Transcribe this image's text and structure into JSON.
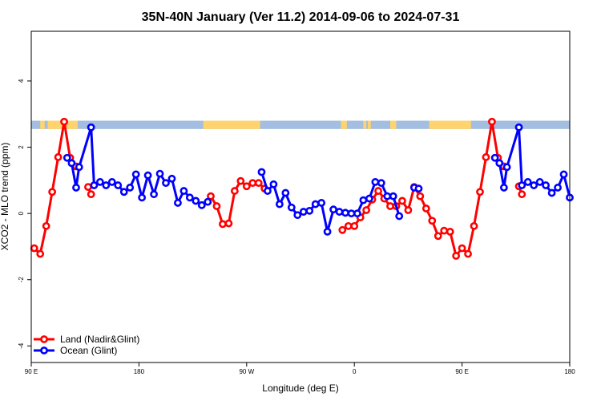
{
  "chart_data": {
    "type": "line",
    "title": "35N-40N January (Ver 11.2)   2014-09-06 to 2024-07-31",
    "xlabel": "Longitude (deg E)",
    "ylabel": "XCO2 - MLO trend (ppm)",
    "xlim": [
      90,
      270
    ],
    "ylim": [
      -4.5,
      5.5
    ],
    "x_ticks": [
      {
        "value": 90,
        "label": "90 E"
      },
      {
        "value": 126,
        "label": "180"
      },
      {
        "value": 162,
        "label": "90 W"
      },
      {
        "value": 198,
        "label": "0"
      },
      {
        "value": 234,
        "label": "90 E"
      },
      {
        "value": 270,
        "label": "180"
      }
    ],
    "y_ticks": [
      -4,
      -2,
      0,
      2,
      4
    ],
    "surface_band": {
      "y_range": [
        2.55,
        2.8
      ],
      "ocean_color": "#A3BEE0",
      "land_color": "#FFD36E",
      "land_segments": [
        [
          93,
          94.5
        ],
        [
          95.5,
          105.5
        ],
        [
          147.5,
          166.5
        ],
        [
          193.5,
          195.5
        ],
        [
          201,
          202
        ],
        [
          202.5,
          203.5
        ],
        [
          210,
          212
        ],
        [
          223,
          237
        ]
      ]
    },
    "series": [
      {
        "name": "Land (Nadir&Glint)",
        "color": "#FF0000",
        "segments": [
          [
            [
              91,
              -1.05
            ],
            [
              93,
              -1.22
            ],
            [
              95,
              -0.38
            ],
            [
              97,
              0.65
            ],
            [
              99,
              1.7
            ],
            [
              101,
              2.77
            ],
            [
              103,
              1.68
            ],
            [
              105,
              1.42
            ]
          ],
          [
            [
              109,
              0.8
            ],
            [
              110,
              0.58
            ]
          ],
          [
            [
              150,
              0.52
            ],
            [
              152,
              0.22
            ],
            [
              154,
              -0.32
            ],
            [
              156,
              -0.3
            ],
            [
              158,
              0.68
            ],
            [
              160,
              0.98
            ],
            [
              162,
              0.82
            ],
            [
              164,
              0.92
            ],
            [
              166,
              0.92
            ],
            [
              168,
              0.75
            ]
          ],
          [
            [
              194,
              -0.5
            ],
            [
              196,
              -0.38
            ],
            [
              198,
              -0.38
            ],
            [
              200,
              -0.12
            ],
            [
              202,
              0.1
            ],
            [
              204,
              0.42
            ],
            [
              206,
              0.68
            ],
            [
              208,
              0.45
            ],
            [
              210,
              0.22
            ],
            [
              212,
              0.22
            ],
            [
              214,
              0.38
            ],
            [
              216,
              0.1
            ],
            [
              218,
              0.8
            ],
            [
              220,
              0.52
            ],
            [
              222,
              0.15
            ],
            [
              224,
              -0.22
            ],
            [
              226,
              -0.68
            ],
            [
              228,
              -0.52
            ],
            [
              230,
              -0.55
            ],
            [
              232,
              -1.28
            ],
            [
              234,
              -1.05
            ],
            [
              236,
              -1.22
            ],
            [
              238,
              -0.38
            ],
            [
              240,
              0.65
            ],
            [
              242,
              1.7
            ],
            [
              244,
              2.77
            ],
            [
              246,
              1.68
            ],
            [
              248,
              1.42
            ]
          ],
          [
            [
              253,
              0.82
            ],
            [
              254,
              0.58
            ]
          ]
        ]
      },
      {
        "name": "Ocean (Glint)",
        "color": "#0000FF",
        "segments": [
          [
            [
              102,
              1.68
            ],
            [
              103.5,
              1.52
            ],
            [
              105,
              0.78
            ],
            [
              106,
              1.4
            ],
            [
              110,
              2.6
            ],
            [
              111,
              0.85
            ],
            [
              113,
              0.95
            ],
            [
              115,
              0.85
            ],
            [
              117,
              0.95
            ],
            [
              119,
              0.85
            ],
            [
              121,
              0.65
            ],
            [
              123,
              0.78
            ],
            [
              125,
              1.18
            ],
            [
              127,
              0.48
            ],
            [
              129,
              1.15
            ],
            [
              131,
              0.58
            ],
            [
              133,
              1.2
            ],
            [
              135,
              0.92
            ],
            [
              137,
              1.05
            ],
            [
              139,
              0.32
            ],
            [
              141,
              0.68
            ],
            [
              143,
              0.48
            ],
            [
              145,
              0.38
            ],
            [
              147,
              0.25
            ],
            [
              149,
              0.35
            ]
          ],
          [
            [
              167,
              1.25
            ],
            [
              169,
              0.68
            ],
            [
              171,
              0.88
            ],
            [
              173,
              0.28
            ],
            [
              175,
              0.62
            ],
            [
              177,
              0.18
            ],
            [
              179,
              -0.05
            ],
            [
              181,
              0.05
            ],
            [
              183,
              0.08
            ],
            [
              185,
              0.28
            ],
            [
              187,
              0.32
            ],
            [
              189,
              -0.55
            ],
            [
              191,
              0.12
            ],
            [
              193,
              0.05
            ],
            [
              195,
              0.02
            ],
            [
              197,
              0.0
            ],
            [
              199,
              0.0
            ],
            [
              201,
              0.4
            ],
            [
              203,
              0.45
            ],
            [
              205,
              0.95
            ],
            [
              207,
              0.92
            ],
            [
              209,
              0.52
            ],
            [
              211,
              0.52
            ],
            [
              213,
              -0.08
            ]
          ],
          [
            [
              218,
              0.78
            ],
            [
              219.5,
              0.75
            ]
          ],
          [
            [
              245,
              1.68
            ],
            [
              246.5,
              1.52
            ],
            [
              248,
              0.78
            ],
            [
              249,
              1.4
            ],
            [
              253,
              2.6
            ],
            [
              254,
              0.85
            ],
            [
              256,
              0.95
            ],
            [
              258,
              0.85
            ],
            [
              260,
              0.95
            ],
            [
              262,
              0.85
            ],
            [
              264,
              0.62
            ],
            [
              266,
              0.78
            ],
            [
              268,
              1.18
            ],
            [
              270,
              0.48
            ]
          ]
        ]
      }
    ],
    "legend_position": "bottom-left",
    "grid": false
  }
}
